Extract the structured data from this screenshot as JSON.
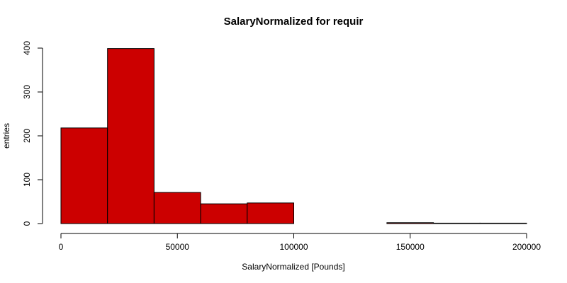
{
  "chart_data": {
    "type": "bar",
    "title": "SalaryNormalized for requir",
    "xlabel": "SalaryNormalized [Pounds]",
    "ylabel": "entries",
    "bins": [
      {
        "from": 0,
        "to": 20000,
        "count": 218
      },
      {
        "from": 20000,
        "to": 40000,
        "count": 399
      },
      {
        "from": 40000,
        "to": 60000,
        "count": 71
      },
      {
        "from": 60000,
        "to": 80000,
        "count": 45
      },
      {
        "from": 80000,
        "to": 100000,
        "count": 47
      },
      {
        "from": 100000,
        "to": 120000,
        "count": 0
      },
      {
        "from": 120000,
        "to": 140000,
        "count": 0
      },
      {
        "from": 140000,
        "to": 160000,
        "count": 2
      },
      {
        "from": 160000,
        "to": 180000,
        "count": 1
      },
      {
        "from": 180000,
        "to": 200000,
        "count": 1
      }
    ],
    "xlim": [
      0,
      200000
    ],
    "ylim": [
      0,
      400
    ],
    "xticks": [
      "0",
      "50000",
      "100000",
      "150000",
      "200000"
    ],
    "yticks": [
      "0",
      "100",
      "200",
      "300",
      "400"
    ],
    "bar_color": "#CC0000",
    "edge_color": "#000000",
    "grid": false,
    "legend": "none"
  }
}
